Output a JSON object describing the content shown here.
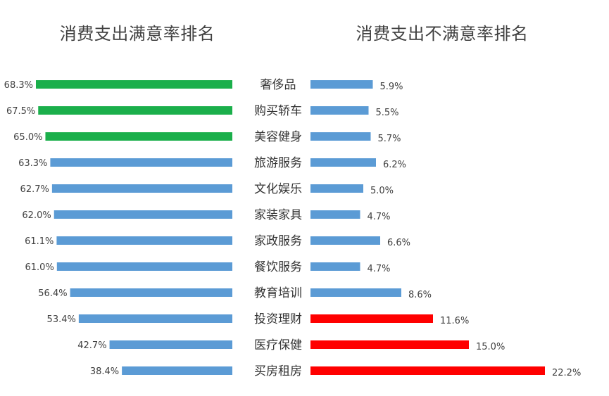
{
  "chart_data": [
    {
      "type": "bar",
      "orientation": "horizontal",
      "title": "消费支出满意率排名",
      "direction": "right-to-left",
      "categories": [
        "奢侈品",
        "购买轿车",
        "美容健身",
        "旅游服务",
        "文化娱乐",
        "家装家具",
        "家政服务",
        "餐饮服务",
        "教育培训",
        "投资理财",
        "医疗保健",
        "买房租房"
      ],
      "values": [
        68.3,
        67.5,
        65.0,
        63.3,
        62.7,
        62.0,
        61.1,
        61.0,
        56.4,
        53.4,
        42.7,
        38.4
      ],
      "value_labels": [
        "68.3%",
        "67.5%",
        "65.0%",
        "63.3%",
        "62.7%",
        "62.0%",
        "61.1%",
        "61.0%",
        "56.4%",
        "53.4%",
        "42.7%",
        "38.4%"
      ],
      "highlight_count": 3,
      "colors": {
        "default": "#5B9BD5",
        "highlight": "#1BAF4B"
      },
      "grid": false,
      "legend": "none"
    },
    {
      "type": "bar",
      "orientation": "horizontal",
      "title": "消费支出不满意率排名",
      "direction": "left-to-right",
      "categories": [
        "奢侈品",
        "购买轿车",
        "美容健身",
        "旅游服务",
        "文化娱乐",
        "家装家具",
        "家政服务",
        "餐饮服务",
        "教育培训",
        "投资理财",
        "医疗保健",
        "买房租房"
      ],
      "values": [
        5.9,
        5.5,
        5.7,
        6.2,
        5.0,
        4.7,
        6.6,
        4.7,
        8.6,
        11.6,
        15.0,
        22.2
      ],
      "value_labels": [
        "5.9%",
        "5.5%",
        "5.7%",
        "6.2%",
        "5.0%",
        "4.7%",
        "6.6%",
        "4.7%",
        "8.6%",
        "11.6%",
        "15.0%",
        "22.2%"
      ],
      "highlight_last_count": 3,
      "colors": {
        "default": "#5B9BD5",
        "highlight": "#FF0000"
      },
      "grid": false,
      "legend": "none"
    }
  ]
}
